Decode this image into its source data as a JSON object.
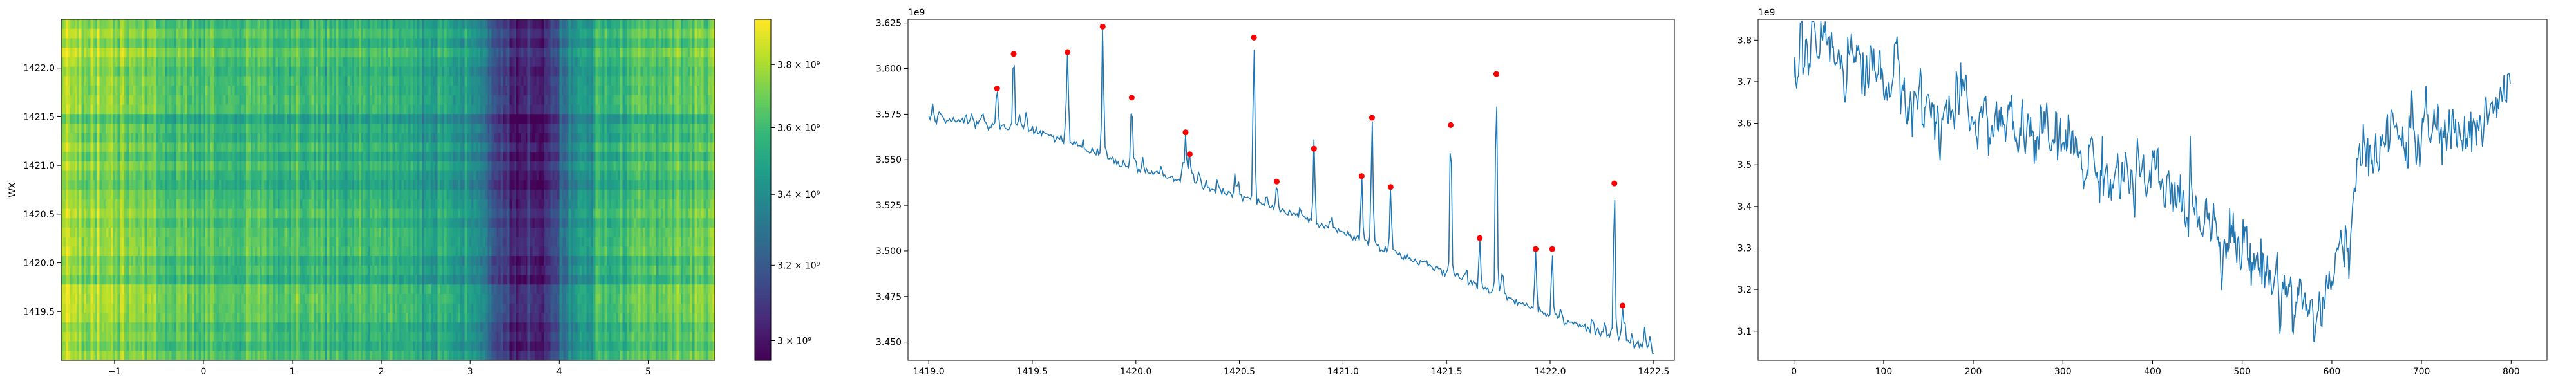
{
  "colors": {
    "line": "#1f77b4",
    "marker": "#ff0000",
    "axes": "#000000",
    "background": "#ffffff"
  },
  "chart_data": [
    {
      "type": "heatmap",
      "colormap": "viridis",
      "x_range": [
        -1.6,
        5.75
      ],
      "y_range": [
        1419.0,
        1422.5
      ],
      "ylabel": "WX",
      "xlabel": "",
      "x_ticks": [
        {
          "value": -1,
          "label": "−1"
        },
        {
          "value": 0,
          "label": "0"
        },
        {
          "value": 1,
          "label": "1"
        },
        {
          "value": 2,
          "label": "2"
        },
        {
          "value": 3,
          "label": "3"
        },
        {
          "value": 4,
          "label": "4"
        },
        {
          "value": 5,
          "label": "5"
        }
      ],
      "y_ticks": [
        {
          "value": 1419.5,
          "label": "1419.5"
        },
        {
          "value": 1420.0,
          "label": "1420.0"
        },
        {
          "value": 1420.5,
          "label": "1420.5"
        },
        {
          "value": 1421.0,
          "label": "1421.0"
        },
        {
          "value": 1421.5,
          "label": "1421.5"
        },
        {
          "value": 1422.0,
          "label": "1422.0"
        }
      ],
      "color_profile_x": [
        -1.6,
        -1.0,
        0.0,
        1.0,
        2.0,
        2.8,
        3.1,
        3.3,
        3.6,
        3.9,
        4.1,
        4.5,
        5.0,
        5.75
      ],
      "color_profile_value": [
        3800000000.0,
        3750000000.0,
        3620000000.0,
        3600000000.0,
        3570000000.0,
        3470000000.0,
        3400000000.0,
        3120000000.0,
        3020000000.0,
        3060000000.0,
        3350000000.0,
        3550000000.0,
        3620000000.0,
        3700000000.0
      ],
      "colorbar": {
        "range": [
          2950000000.0,
          3950000000.0
        ],
        "scale": "log",
        "ticks": [
          {
            "value": 3000000000.0,
            "label": "3 × 10⁹"
          },
          {
            "value": 3200000000.0,
            "label": "3.2 × 10⁹"
          },
          {
            "value": 3400000000.0,
            "label": "3.4 × 10⁹"
          },
          {
            "value": 3600000000.0,
            "label": "3.6 × 10⁹"
          },
          {
            "value": 3800000000.0,
            "label": "3.8 × 10⁹"
          }
        ]
      }
    },
    {
      "type": "line",
      "title": "",
      "xlabel": "",
      "ylabel": "",
      "offset_text": "1e9",
      "xlim": [
        1418.9,
        1422.6
      ],
      "ylim": [
        3.44,
        3.627
      ],
      "x_ticks": [
        1419.0,
        1419.5,
        1420.0,
        1420.5,
        1421.0,
        1421.5,
        1422.0,
        1422.5
      ],
      "x_tick_labels": [
        "1419.0",
        "1419.5",
        "1420.0",
        "1420.5",
        "1421.0",
        "1421.5",
        "1422.0",
        "1422.5"
      ],
      "y_ticks": [
        3.45,
        3.475,
        3.5,
        3.525,
        3.55,
        3.575,
        3.6,
        3.625
      ],
      "y_tick_labels": [
        "3.450",
        "3.475",
        "3.500",
        "3.525",
        "3.550",
        "3.575",
        "3.600",
        "3.625"
      ],
      "x_start": 1419.0,
      "x_end": 1422.5,
      "baseline": [
        {
          "x": 1419.0,
          "y": 3.573
        },
        {
          "x": 1419.5,
          "y": 3.567
        },
        {
          "x": 1420.0,
          "y": 3.545
        },
        {
          "x": 1420.5,
          "y": 3.53
        },
        {
          "x": 1421.0,
          "y": 3.51
        },
        {
          "x": 1421.5,
          "y": 3.488
        },
        {
          "x": 1422.0,
          "y": 3.465
        },
        {
          "x": 1422.5,
          "y": 3.445
        }
      ],
      "peaks": [
        {
          "x": 1419.33,
          "y": 3.589
        },
        {
          "x": 1419.41,
          "y": 3.608
        },
        {
          "x": 1419.67,
          "y": 3.609
        },
        {
          "x": 1419.84,
          "y": 3.623
        },
        {
          "x": 1419.98,
          "y": 3.584
        },
        {
          "x": 1420.24,
          "y": 3.565
        },
        {
          "x": 1420.26,
          "y": 3.553
        },
        {
          "x": 1420.57,
          "y": 3.617
        },
        {
          "x": 1420.68,
          "y": 3.538
        },
        {
          "x": 1420.86,
          "y": 3.556
        },
        {
          "x": 1421.09,
          "y": 3.541
        },
        {
          "x": 1421.14,
          "y": 3.573
        },
        {
          "x": 1421.23,
          "y": 3.535
        },
        {
          "x": 1421.52,
          "y": 3.569
        },
        {
          "x": 1421.66,
          "y": 3.507
        },
        {
          "x": 1421.74,
          "y": 3.597
        },
        {
          "x": 1421.93,
          "y": 3.501
        },
        {
          "x": 1422.01,
          "y": 3.501
        },
        {
          "x": 1422.31,
          "y": 3.537
        },
        {
          "x": 1422.35,
          "y": 3.47
        }
      ]
    },
    {
      "type": "line",
      "title": "",
      "xlabel": "",
      "ylabel": "",
      "offset_text": "1e9",
      "xlim": [
        -40,
        840
      ],
      "ylim": [
        3.03,
        3.85
      ],
      "x_ticks": [
        0,
        100,
        200,
        300,
        400,
        500,
        600,
        700,
        800
      ],
      "x_tick_labels": [
        "0",
        "100",
        "200",
        "300",
        "400",
        "500",
        "600",
        "700",
        "800"
      ],
      "y_ticks": [
        3.1,
        3.2,
        3.3,
        3.4,
        3.5,
        3.6,
        3.7,
        3.8
      ],
      "y_tick_labels": [
        "3.1",
        "3.2",
        "3.3",
        "3.4",
        "3.5",
        "3.6",
        "3.7",
        "3.8"
      ],
      "n_points": 800,
      "trend": [
        {
          "x": 0,
          "y": 3.74
        },
        {
          "x": 30,
          "y": 3.8
        },
        {
          "x": 60,
          "y": 3.76
        },
        {
          "x": 100,
          "y": 3.72
        },
        {
          "x": 150,
          "y": 3.63
        },
        {
          "x": 200,
          "y": 3.62
        },
        {
          "x": 250,
          "y": 3.58
        },
        {
          "x": 300,
          "y": 3.55
        },
        {
          "x": 350,
          "y": 3.48
        },
        {
          "x": 400,
          "y": 3.45
        },
        {
          "x": 450,
          "y": 3.4
        },
        {
          "x": 500,
          "y": 3.3
        },
        {
          "x": 550,
          "y": 3.2
        },
        {
          "x": 580,
          "y": 3.14
        },
        {
          "x": 600,
          "y": 3.2
        },
        {
          "x": 620,
          "y": 3.35
        },
        {
          "x": 640,
          "y": 3.55
        },
        {
          "x": 700,
          "y": 3.58
        },
        {
          "x": 750,
          "y": 3.57
        },
        {
          "x": 800,
          "y": 3.68
        }
      ]
    }
  ]
}
